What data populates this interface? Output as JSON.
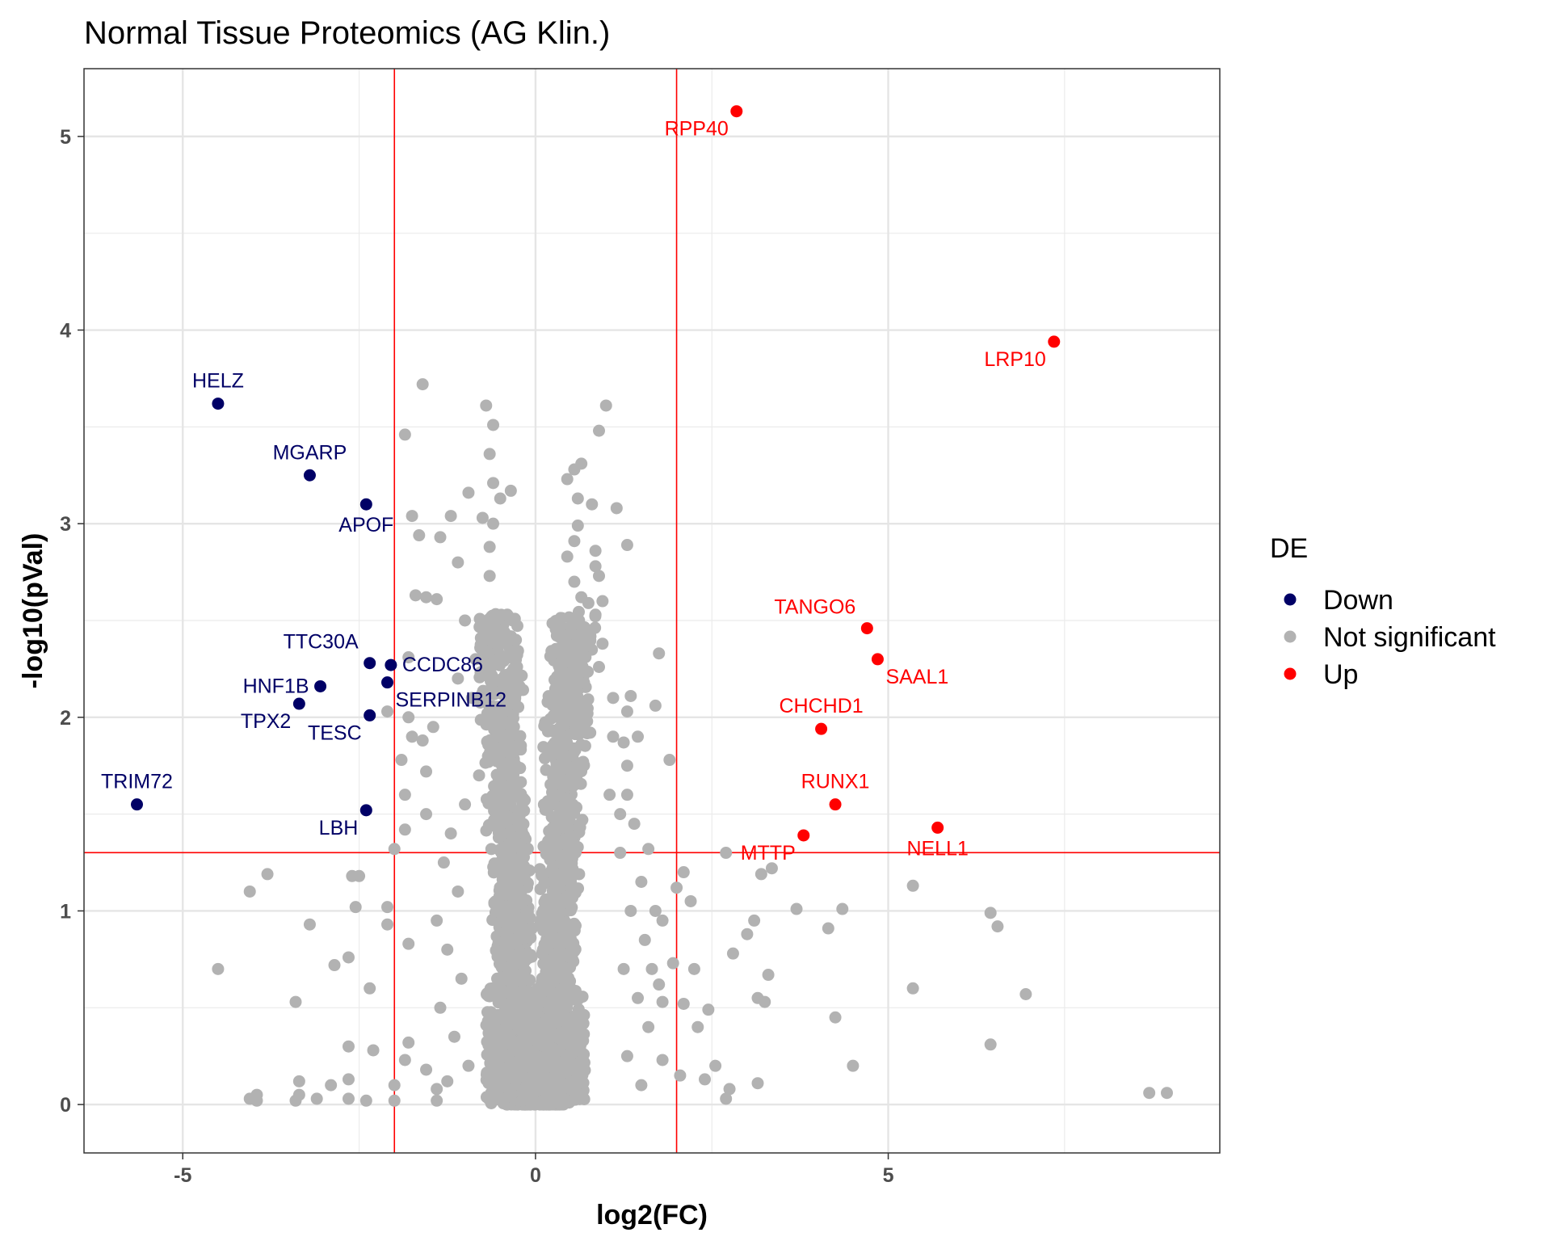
{
  "chart_data": {
    "type": "scatter",
    "title": "Normal Tissue Proteomics (AG Klin.)",
    "xlabel": "log2(FC)",
    "ylabel": "-log10(pVal)",
    "xlim": [
      -6.4,
      9.7
    ],
    "ylim": [
      -0.25,
      5.35
    ],
    "x_ticks": [
      -5,
      0,
      5
    ],
    "y_ticks": [
      0,
      1,
      2,
      3,
      4,
      5
    ],
    "grid": true,
    "legend": {
      "title": "DE",
      "placement": "right",
      "entries": [
        {
          "label": "Down",
          "color": "#000066"
        },
        {
          "label": "Not significant",
          "color": "#b2b2b2"
        },
        {
          "label": "Up",
          "color": "#ff0000"
        }
      ]
    },
    "thresholds": {
      "vertical": [
        -2,
        2
      ],
      "horizontal": 1.301,
      "color": "#ff0000"
    },
    "series": [
      {
        "name": "Down",
        "color": "#000066",
        "points": [
          {
            "label": "HELZ",
            "x": -4.5,
            "y": 3.62,
            "label_pos": "above"
          },
          {
            "label": "MGARP",
            "x": -3.2,
            "y": 3.25,
            "label_pos": "above"
          },
          {
            "label": "APOF",
            "x": -2.4,
            "y": 3.1,
            "label_pos": "below"
          },
          {
            "label": "TTC30A",
            "x": -2.35,
            "y": 2.28,
            "label_pos": "above-left"
          },
          {
            "label": "CCDC86",
            "x": -2.05,
            "y": 2.27,
            "label_pos": "right"
          },
          {
            "label": "SERPINB12",
            "x": -2.1,
            "y": 2.18,
            "label_pos": "below-right"
          },
          {
            "label": "HNF1B",
            "x": -3.05,
            "y": 2.16,
            "label_pos": "left"
          },
          {
            "label": "TPX2",
            "x": -3.35,
            "y": 2.07,
            "label_pos": "below-left"
          },
          {
            "label": "TESC",
            "x": -2.35,
            "y": 2.01,
            "label_pos": "below-left"
          },
          {
            "label": "TRIM72",
            "x": -5.65,
            "y": 1.55,
            "label_pos": "above"
          },
          {
            "label": "LBH",
            "x": -2.4,
            "y": 1.52,
            "label_pos": "below-left"
          }
        ]
      },
      {
        "name": "Up",
        "color": "#ff0000",
        "points": [
          {
            "label": "RPP40",
            "x": 2.85,
            "y": 5.13,
            "label_pos": "below-left"
          },
          {
            "label": "LRP10",
            "x": 7.35,
            "y": 3.94,
            "label_pos": "below-left"
          },
          {
            "label": "TANGO6",
            "x": 4.7,
            "y": 2.46,
            "label_pos": "above-left"
          },
          {
            "label": "SAAL1",
            "x": 4.85,
            "y": 2.3,
            "label_pos": "below-right"
          },
          {
            "label": "CHCHD1",
            "x": 4.05,
            "y": 1.94,
            "label_pos": "above"
          },
          {
            "label": "RUNX1",
            "x": 4.25,
            "y": 1.55,
            "label_pos": "above"
          },
          {
            "label": "NELL1",
            "x": 5.7,
            "y": 1.43,
            "label_pos": "below"
          },
          {
            "label": "MTTP",
            "x": 3.8,
            "y": 1.39,
            "label_pos": "below-left"
          }
        ]
      },
      {
        "name": "Not significant",
        "color": "#b2b2b2",
        "points": [
          [
            -1.6,
            3.72
          ],
          [
            -1.85,
            3.46
          ],
          [
            -0.7,
            3.61
          ],
          [
            -0.6,
            3.51
          ],
          [
            -0.65,
            3.36
          ],
          [
            -0.6,
            3.21
          ],
          [
            -0.35,
            3.17
          ],
          [
            -0.5,
            3.13
          ],
          [
            -0.95,
            3.16
          ],
          [
            -1.2,
            3.04
          ],
          [
            -0.75,
            3.03
          ],
          [
            -0.6,
            3.0
          ],
          [
            -1.75,
            3.04
          ],
          [
            -1.65,
            2.94
          ],
          [
            -1.35,
            2.93
          ],
          [
            -0.65,
            2.88
          ],
          [
            -1.1,
            2.8
          ],
          [
            -0.65,
            2.73
          ],
          [
            -1.7,
            2.63
          ],
          [
            -1.55,
            2.62
          ],
          [
            -1.4,
            2.61
          ],
          [
            -1.0,
            2.5
          ],
          [
            -0.6,
            2.5
          ],
          [
            -0.4,
            2.53
          ],
          [
            -1.8,
            2.31
          ],
          [
            -2.1,
            2.03
          ],
          [
            -1.8,
            2.0
          ],
          [
            -1.75,
            1.9
          ],
          [
            -1.45,
            1.95
          ],
          [
            -1.6,
            1.88
          ],
          [
            -1.9,
            1.78
          ],
          [
            -1.55,
            1.72
          ],
          [
            -1.85,
            1.6
          ],
          [
            -1.55,
            1.5
          ],
          [
            -1.85,
            1.42
          ],
          [
            -2.0,
            1.32
          ],
          [
            -2.5,
            1.18
          ],
          [
            -2.6,
            1.18
          ],
          [
            -2.55,
            1.02
          ],
          [
            -2.1,
            1.02
          ],
          [
            -2.1,
            0.93
          ],
          [
            -1.8,
            0.83
          ],
          [
            -3.2,
            0.93
          ],
          [
            -2.65,
            0.76
          ],
          [
            -2.85,
            0.72
          ],
          [
            -2.35,
            0.6
          ],
          [
            -3.4,
            0.53
          ],
          [
            -3.8,
            1.19
          ],
          [
            -4.05,
            1.1
          ],
          [
            -4.5,
            0.7
          ],
          [
            -2.65,
            0.3
          ],
          [
            -2.3,
            0.28
          ],
          [
            -1.8,
            0.32
          ],
          [
            -1.85,
            0.23
          ],
          [
            -2.0,
            0.1
          ],
          [
            -2.0,
            0.02
          ],
          [
            -2.4,
            0.02
          ],
          [
            -2.65,
            0.03
          ],
          [
            -2.65,
            0.13
          ],
          [
            -2.9,
            0.1
          ],
          [
            -3.1,
            0.03
          ],
          [
            -3.35,
            0.12
          ],
          [
            -3.35,
            0.05
          ],
          [
            -3.4,
            0.02
          ],
          [
            -3.95,
            0.05
          ],
          [
            -3.95,
            0.02
          ],
          [
            -4.05,
            0.03
          ],
          [
            -1.55,
            0.18
          ],
          [
            -1.4,
            0.08
          ],
          [
            -1.4,
            0.02
          ],
          [
            1.0,
            3.61
          ],
          [
            0.9,
            3.48
          ],
          [
            0.65,
            3.31
          ],
          [
            0.55,
            3.28
          ],
          [
            0.45,
            3.23
          ],
          [
            0.6,
            3.13
          ],
          [
            0.8,
            3.1
          ],
          [
            1.15,
            3.08
          ],
          [
            0.6,
            2.99
          ],
          [
            0.55,
            2.91
          ],
          [
            0.85,
            2.86
          ],
          [
            1.3,
            2.89
          ],
          [
            0.45,
            2.83
          ],
          [
            0.85,
            2.78
          ],
          [
            0.9,
            2.73
          ],
          [
            0.55,
            2.7
          ],
          [
            0.65,
            2.62
          ],
          [
            0.75,
            2.59
          ],
          [
            0.95,
            2.6
          ],
          [
            0.85,
            2.53
          ],
          [
            0.5,
            2.44
          ],
          [
            0.65,
            2.41
          ],
          [
            0.95,
            2.38
          ],
          [
            0.9,
            2.26
          ],
          [
            1.75,
            2.33
          ],
          [
            1.35,
            2.11
          ],
          [
            1.3,
            2.03
          ],
          [
            1.7,
            2.06
          ],
          [
            1.9,
            1.78
          ],
          [
            1.25,
            1.87
          ],
          [
            1.3,
            1.6
          ],
          [
            1.2,
            1.5
          ],
          [
            1.6,
            1.32
          ],
          [
            2.1,
            1.2
          ],
          [
            2.0,
            1.12
          ],
          [
            2.2,
            1.05
          ],
          [
            1.7,
            1.0
          ],
          [
            1.8,
            0.95
          ],
          [
            1.95,
            0.73
          ],
          [
            1.65,
            0.7
          ],
          [
            1.75,
            0.62
          ],
          [
            2.25,
            0.7
          ],
          [
            1.8,
            0.53
          ],
          [
            2.1,
            0.52
          ],
          [
            2.45,
            0.49
          ],
          [
            2.3,
            0.4
          ],
          [
            1.8,
            0.23
          ],
          [
            2.05,
            0.15
          ],
          [
            2.4,
            0.13
          ],
          [
            2.55,
            0.2
          ],
          [
            2.7,
            0.03
          ],
          [
            2.75,
            0.08
          ],
          [
            3.15,
            0.11
          ],
          [
            2.7,
            1.3
          ],
          [
            2.8,
            0.78
          ],
          [
            3.0,
            0.88
          ],
          [
            3.1,
            0.95
          ],
          [
            3.3,
            0.67
          ],
          [
            3.25,
            0.53
          ],
          [
            3.15,
            0.55
          ],
          [
            3.2,
            1.19
          ],
          [
            3.35,
            1.22
          ],
          [
            3.7,
            1.01
          ],
          [
            4.15,
            0.91
          ],
          [
            4.35,
            1.01
          ],
          [
            4.25,
            0.45
          ],
          [
            4.5,
            0.2
          ],
          [
            5.35,
            1.13
          ],
          [
            5.35,
            0.6
          ],
          [
            6.45,
            0.31
          ],
          [
            6.45,
            0.99
          ],
          [
            6.55,
            0.92
          ],
          [
            6.95,
            0.57
          ],
          [
            8.7,
            0.06
          ],
          [
            8.95,
            0.06
          ],
          [
            -0.8,
            1.7
          ],
          [
            -1.0,
            1.55
          ],
          [
            -1.2,
            1.4
          ],
          [
            -1.3,
            1.25
          ],
          [
            -1.1,
            1.1
          ],
          [
            -1.4,
            0.95
          ],
          [
            -1.25,
            0.8
          ],
          [
            -1.05,
            0.65
          ],
          [
            -1.35,
            0.5
          ],
          [
            -1.15,
            0.35
          ],
          [
            -0.95,
            0.2
          ],
          [
            -1.25,
            0.12
          ],
          [
            -0.9,
            2.1
          ],
          [
            -1.1,
            2.2
          ],
          [
            -0.85,
            2.3
          ],
          [
            1.1,
            1.9
          ],
          [
            1.3,
            1.75
          ],
          [
            1.05,
            1.6
          ],
          [
            1.4,
            1.45
          ],
          [
            1.2,
            1.3
          ],
          [
            1.5,
            1.15
          ],
          [
            1.35,
            1.0
          ],
          [
            1.55,
            0.85
          ],
          [
            1.25,
            0.7
          ],
          [
            1.45,
            0.55
          ],
          [
            1.6,
            0.4
          ],
          [
            1.3,
            0.25
          ],
          [
            1.5,
            0.1
          ],
          [
            1.1,
            2.1
          ],
          [
            1.45,
            1.9
          ]
        ]
      }
    ]
  }
}
